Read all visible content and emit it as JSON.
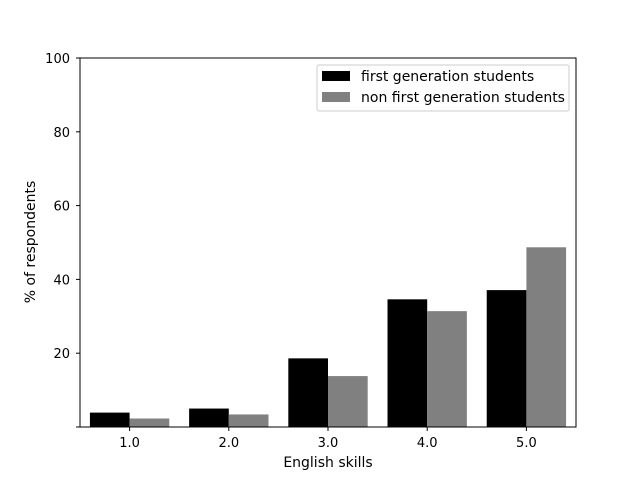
{
  "chart_data": {
    "type": "bar",
    "xlabel": "English skills",
    "ylabel": "% of respondents",
    "categories": [
      "1.0",
      "2.0",
      "3.0",
      "4.0",
      "5.0"
    ],
    "ylim": [
      0,
      100
    ],
    "yticks": [
      "20",
      "40",
      "60",
      "80",
      "100"
    ],
    "grid": false,
    "legend_position": "top-right",
    "series": [
      {
        "name": "first generation students",
        "color": "#000000",
        "values": [
          3.9,
          5.0,
          18.6,
          34.6,
          37.1
        ]
      },
      {
        "name": "non first generation students",
        "color": "#808080",
        "values": [
          2.3,
          3.4,
          13.8,
          31.4,
          48.7
        ]
      }
    ]
  }
}
